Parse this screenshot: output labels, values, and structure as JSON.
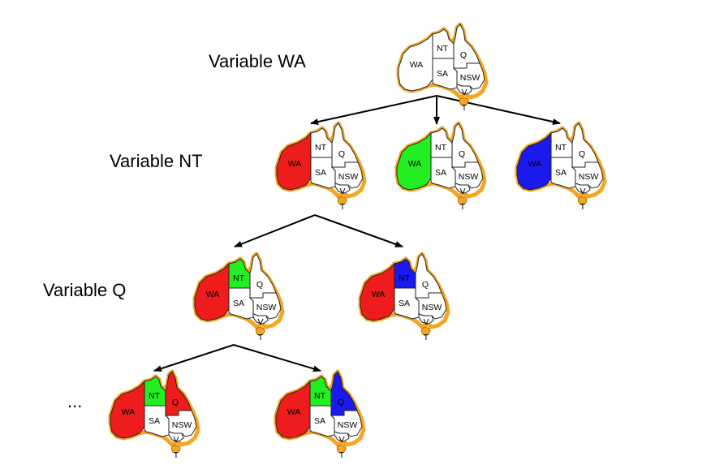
{
  "levels": [
    {
      "label": "Variable WA"
    },
    {
      "label": "Variable NT"
    },
    {
      "label": "Variable Q"
    },
    {
      "label": "..."
    }
  ],
  "region_labels": {
    "WA": "WA",
    "NT": "NT",
    "Q": "Q",
    "SA": "SA",
    "NSW": "NSW",
    "V": "V",
    "T": "T"
  },
  "colors": {
    "red": "#ee1c1c",
    "green": "#22ee22",
    "blue": "#1a1aee",
    "outline": "#f4a623",
    "edge": "#000000"
  },
  "nodes": [
    {
      "id": "root",
      "level": 0,
      "assign": {}
    },
    {
      "id": "wa-red",
      "level": 1,
      "assign": {
        "WA": "red"
      }
    },
    {
      "id": "wa-green",
      "level": 1,
      "assign": {
        "WA": "green"
      }
    },
    {
      "id": "wa-blue",
      "level": 1,
      "assign": {
        "WA": "blue"
      }
    },
    {
      "id": "nt-green",
      "level": 2,
      "assign": {
        "WA": "red",
        "NT": "green"
      }
    },
    {
      "id": "nt-blue",
      "level": 2,
      "assign": {
        "WA": "red",
        "NT": "blue"
      }
    },
    {
      "id": "q-red",
      "level": 3,
      "assign": {
        "WA": "red",
        "NT": "green",
        "Q": "red"
      }
    },
    {
      "id": "q-blue",
      "level": 3,
      "assign": {
        "WA": "red",
        "NT": "green",
        "Q": "blue"
      }
    }
  ],
  "edges": [
    {
      "from": "root",
      "to": "wa-red"
    },
    {
      "from": "root",
      "to": "wa-green"
    },
    {
      "from": "root",
      "to": "wa-blue"
    },
    {
      "from": "wa-red",
      "to": "nt-green"
    },
    {
      "from": "wa-red",
      "to": "nt-blue"
    },
    {
      "from": "nt-green",
      "to": "q-red"
    },
    {
      "from": "nt-green",
      "to": "q-blue"
    }
  ]
}
